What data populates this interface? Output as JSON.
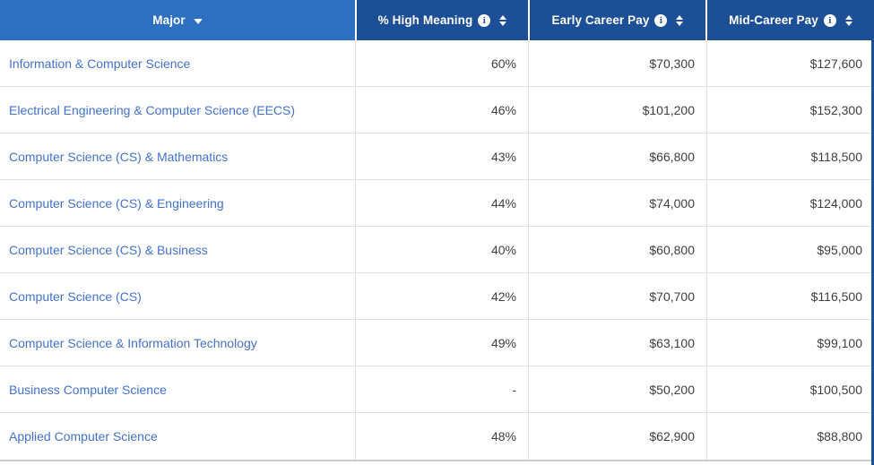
{
  "colors": {
    "header_major_bg": "#2d70c2",
    "header_dark_bg": "#1d4f96",
    "link_blue": "#4372ce",
    "value_text": "#3d3f42",
    "row_border": "#e2e2e2"
  },
  "icons": {
    "info_glyph": "i"
  },
  "table": {
    "columns": {
      "major": {
        "label": "Major",
        "sorted": "desc"
      },
      "high_meaning": {
        "label": "% High Meaning"
      },
      "early_pay": {
        "label": "Early Career Pay"
      },
      "mid_pay": {
        "label": "Mid-Career Pay"
      }
    },
    "rows": [
      {
        "major": "Information & Computer Science",
        "high_meaning": "60%",
        "early_pay": "$70,300",
        "mid_pay": "$127,600"
      },
      {
        "major": "Electrical Engineering & Computer Science (EECS)",
        "high_meaning": "46%",
        "early_pay": "$101,200",
        "mid_pay": "$152,300"
      },
      {
        "major": "Computer Science (CS) & Mathematics",
        "high_meaning": "43%",
        "early_pay": "$66,800",
        "mid_pay": "$118,500"
      },
      {
        "major": "Computer Science (CS) & Engineering",
        "high_meaning": "44%",
        "early_pay": "$74,000",
        "mid_pay": "$124,000"
      },
      {
        "major": "Computer Science (CS) & Business",
        "high_meaning": "40%",
        "early_pay": "$60,800",
        "mid_pay": "$95,000"
      },
      {
        "major": "Computer Science (CS)",
        "high_meaning": "42%",
        "early_pay": "$70,700",
        "mid_pay": "$116,500"
      },
      {
        "major": "Computer Science & Information Technology",
        "high_meaning": "49%",
        "early_pay": "$63,100",
        "mid_pay": "$99,100"
      },
      {
        "major": "Business Computer Science",
        "high_meaning": "-",
        "early_pay": "$50,200",
        "mid_pay": "$100,500"
      },
      {
        "major": "Applied Computer Science",
        "high_meaning": "48%",
        "early_pay": "$62,900",
        "mid_pay": "$88,800"
      }
    ]
  }
}
